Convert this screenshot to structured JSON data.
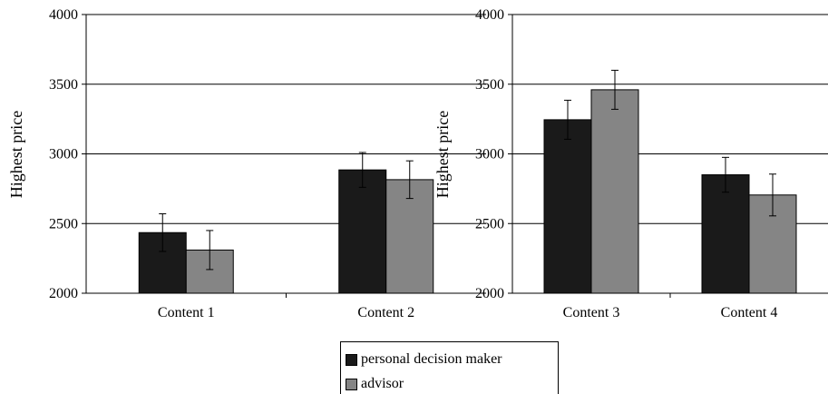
{
  "chart_data": [
    {
      "type": "bar",
      "categories": [
        "Content 1",
        "Content 2"
      ],
      "ylabel": "Highest price",
      "xlabel": "",
      "ylim": [
        2000,
        4000
      ],
      "yticks": [
        "2000",
        "2500",
        "3000",
        "3500",
        "4000"
      ],
      "grid": true,
      "series": [
        {
          "name": "personal decision maker",
          "values": [
            2435,
            2885
          ],
          "errors": [
            135,
            125
          ]
        },
        {
          "name": "advisor",
          "values": [
            2310,
            2815
          ],
          "errors": [
            140,
            135
          ]
        }
      ]
    },
    {
      "type": "bar",
      "categories": [
        "Content 3",
        "Content 4"
      ],
      "ylabel": "Highest price",
      "xlabel": "",
      "ylim": [
        2000,
        4000
      ],
      "yticks": [
        "2000",
        "2500",
        "3000",
        "3500",
        "4000"
      ],
      "grid": true,
      "series": [
        {
          "name": "personal decision maker",
          "values": [
            3245,
            2850
          ],
          "errors": [
            140,
            125
          ]
        },
        {
          "name": "advisor",
          "values": [
            3460,
            2705
          ],
          "errors": [
            140,
            150
          ]
        }
      ]
    }
  ],
  "legend": {
    "placement": "bottom-center",
    "items": [
      {
        "label": "personal decision maker",
        "color": "#1a1a1a"
      },
      {
        "label": "advisor",
        "color": "#858585"
      }
    ]
  },
  "colors": {
    "series_1": "#1a1a1a",
    "series_2": "#858585",
    "grid": "#000000"
  }
}
